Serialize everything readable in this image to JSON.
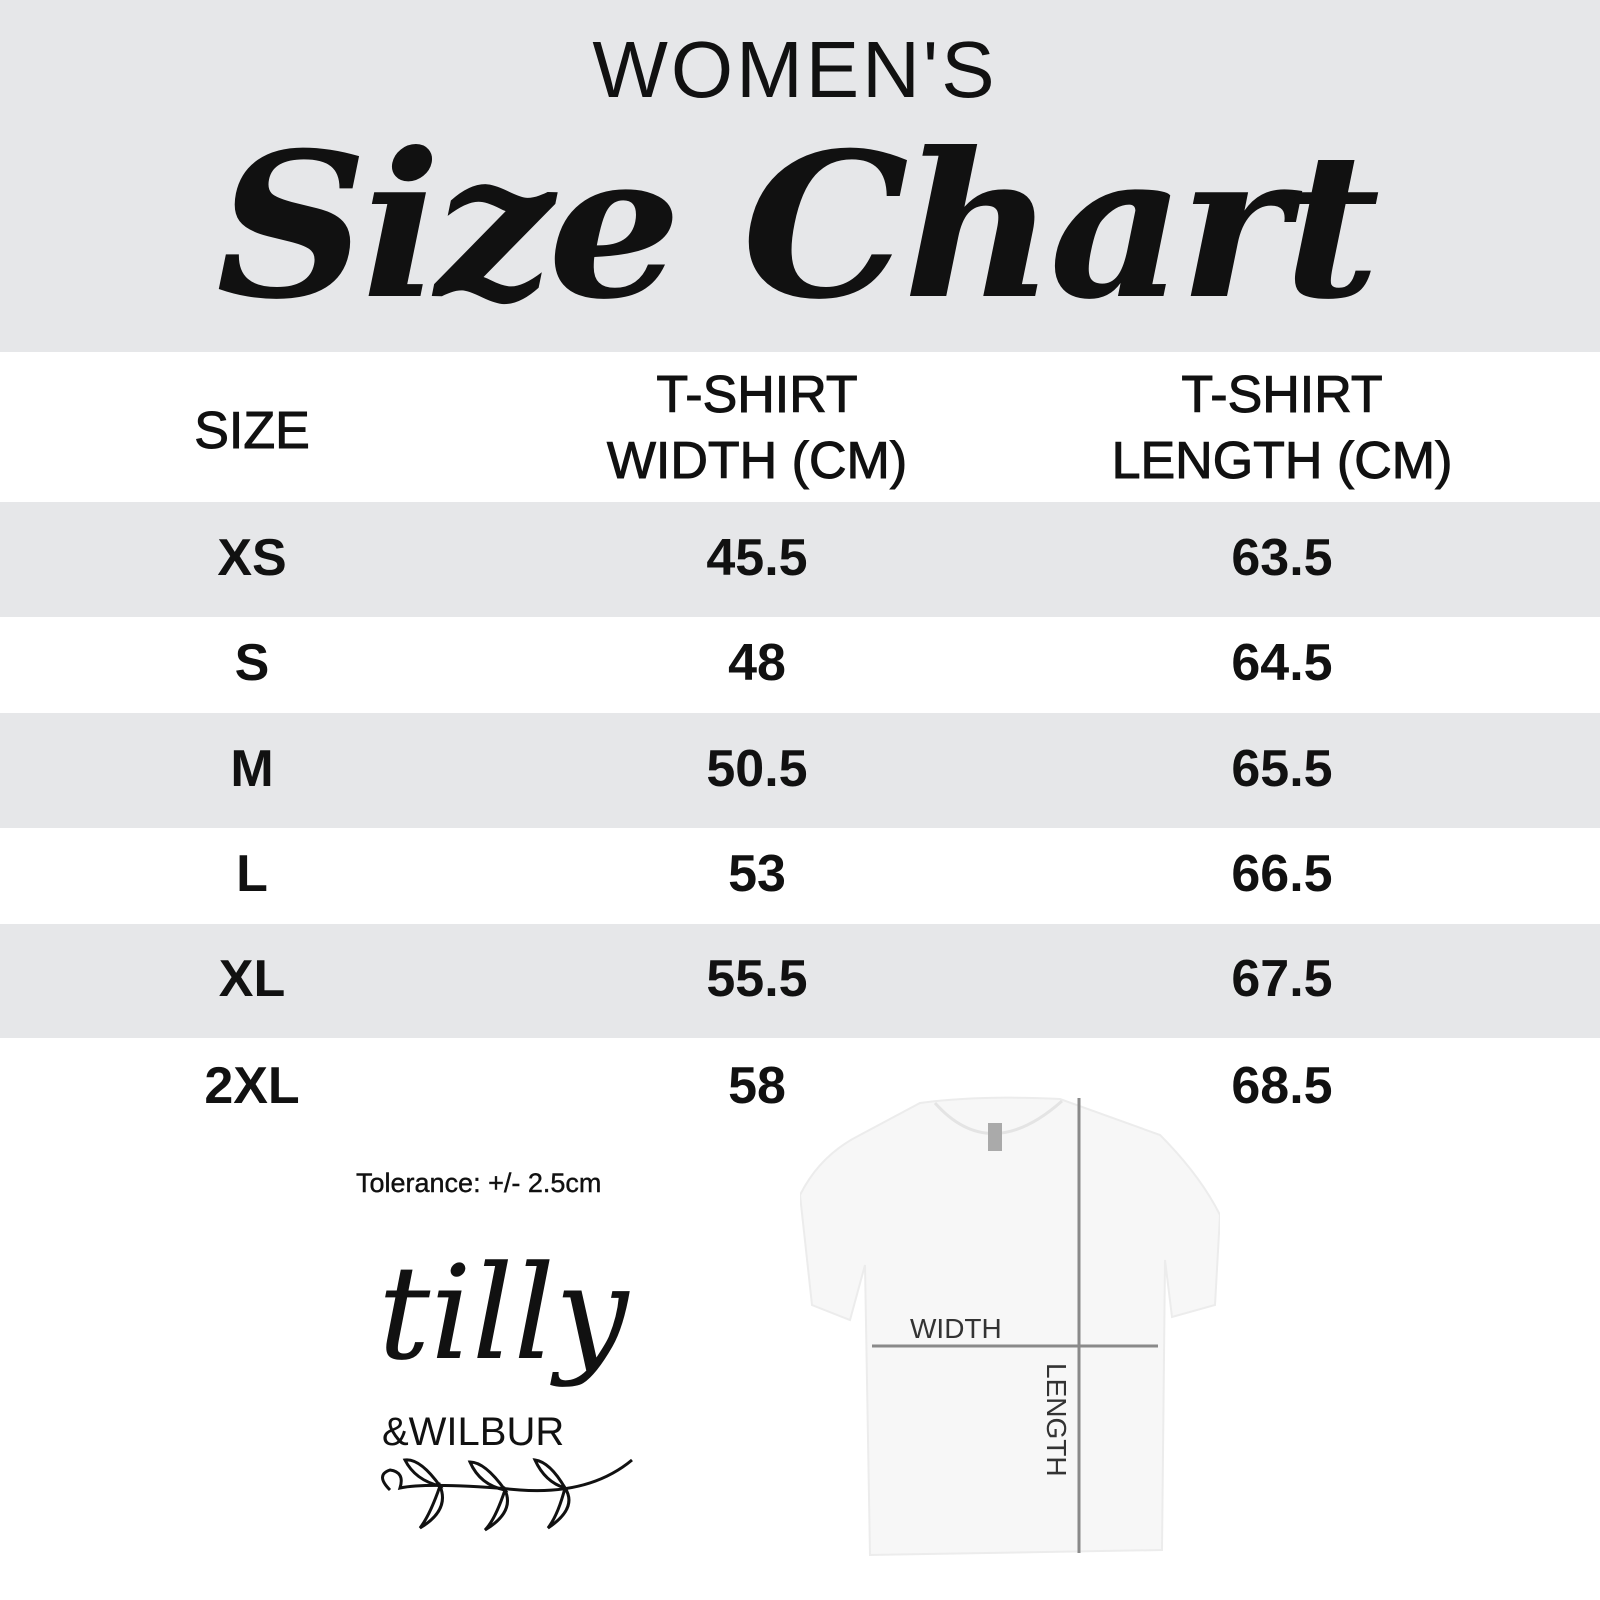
{
  "header": {
    "subtitle": "WOMEN'S",
    "title": "Size Chart"
  },
  "table": {
    "columns": [
      "SIZE",
      "T-SHIRT\nWIDTH (CM)",
      "T-SHIRT\nLENGTH (CM)"
    ],
    "col1_line1": "T-SHIRT",
    "col1_line2": "WIDTH (CM)",
    "col2_line1": "T-SHIRT",
    "col2_line2": "LENGTH (CM)",
    "rows": [
      {
        "size": "XS",
        "width": "45.5",
        "length": "63.5"
      },
      {
        "size": "S",
        "width": "48",
        "length": "64.5"
      },
      {
        "size": "M",
        "width": "50.5",
        "length": "65.5"
      },
      {
        "size": "L",
        "width": "53",
        "length": "66.5"
      },
      {
        "size": "XL",
        "width": "55.5",
        "length": "67.5"
      },
      {
        "size": "2XL",
        "width": "58",
        "length": "68.5"
      }
    ]
  },
  "tolerance": "Tolerance: +/- 2.5cm",
  "diagram": {
    "width_label": "WIDTH",
    "length_label": "LENGTH"
  },
  "logo": {
    "line1": "tilly",
    "line2": "&WILBUR"
  },
  "colors": {
    "band": "#e6e7e9",
    "text": "#111111",
    "measure_line": "#8a8a8a"
  }
}
